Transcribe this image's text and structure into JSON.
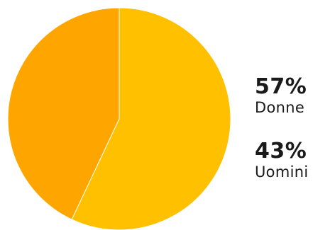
{
  "chart_data": {
    "type": "pie",
    "slices": [
      {
        "label": "Donne",
        "value": 57,
        "display": "57%",
        "color": "#FFC000"
      },
      {
        "label": "Uomini",
        "value": 43,
        "display": "43%",
        "color": "#FFA500"
      }
    ]
  }
}
